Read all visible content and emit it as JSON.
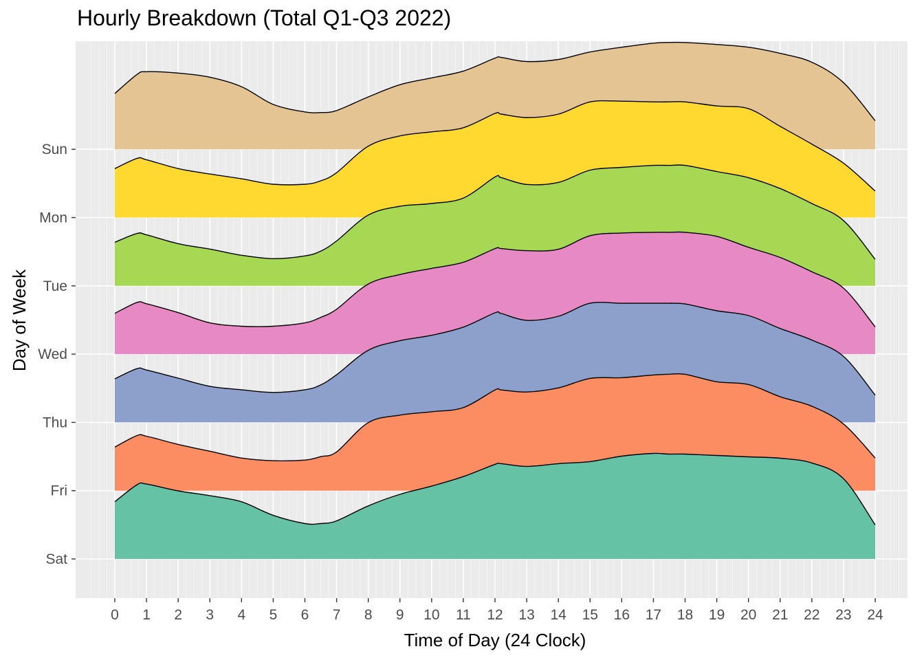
{
  "chart_data": {
    "type": "area",
    "title": "Hourly Breakdown (Total Q1-Q3 2022)",
    "xlabel": "Time of Day (24 Clock)",
    "ylabel": "Day of Week",
    "xlim": [
      0,
      24
    ],
    "x_ticks": [
      "0",
      "1",
      "2",
      "3",
      "4",
      "5",
      "6",
      "7",
      "8",
      "9",
      "10",
      "11",
      "12",
      "13",
      "14",
      "15",
      "16",
      "17",
      "18",
      "19",
      "20",
      "21",
      "22",
      "23",
      "24"
    ],
    "categories": [
      "Sat",
      "Fri",
      "Thu",
      "Wed",
      "Tue",
      "Mon",
      "Sun"
    ],
    "grid": true,
    "background": "#ebebeb",
    "x": [
      0,
      0.7,
      1,
      2,
      3,
      4,
      5,
      6,
      6.5,
      7,
      8,
      9,
      10,
      11,
      12,
      12.2,
      13,
      14,
      15,
      16,
      17,
      17.5,
      18,
      19,
      20,
      21,
      22,
      23,
      24
    ],
    "series": [
      {
        "name": "Sun",
        "color": "#e5c494",
        "values": [
          0.82,
          1.1,
          1.14,
          1.12,
          1.06,
          0.92,
          0.66,
          0.55,
          0.54,
          0.57,
          0.77,
          0.95,
          1.05,
          1.15,
          1.34,
          1.35,
          1.29,
          1.32,
          1.43,
          1.5,
          1.56,
          1.57,
          1.57,
          1.54,
          1.5,
          1.41,
          1.28,
          0.98,
          0.42
        ]
      },
      {
        "name": "Mon",
        "color": "#ffd92f",
        "values": [
          0.72,
          0.87,
          0.85,
          0.72,
          0.64,
          0.57,
          0.49,
          0.49,
          0.54,
          0.66,
          1.05,
          1.2,
          1.26,
          1.32,
          1.53,
          1.52,
          1.47,
          1.52,
          1.7,
          1.71,
          1.7,
          1.7,
          1.7,
          1.64,
          1.6,
          1.34,
          1.08,
          0.8,
          0.39
        ]
      },
      {
        "name": "Tue",
        "color": "#a6d854",
        "values": [
          0.64,
          0.77,
          0.75,
          0.62,
          0.54,
          0.45,
          0.4,
          0.44,
          0.51,
          0.66,
          1.04,
          1.17,
          1.21,
          1.29,
          1.6,
          1.59,
          1.49,
          1.52,
          1.7,
          1.74,
          1.77,
          1.77,
          1.77,
          1.68,
          1.59,
          1.43,
          1.21,
          0.96,
          0.39
        ]
      },
      {
        "name": "Wed",
        "color": "#e78ac3",
        "values": [
          0.6,
          0.76,
          0.74,
          0.61,
          0.46,
          0.41,
          0.41,
          0.46,
          0.54,
          0.66,
          1.03,
          1.17,
          1.26,
          1.35,
          1.55,
          1.55,
          1.52,
          1.54,
          1.74,
          1.78,
          1.79,
          1.79,
          1.79,
          1.73,
          1.57,
          1.42,
          1.21,
          0.97,
          0.4
        ]
      },
      {
        "name": "Thu",
        "color": "#8da0cb",
        "values": [
          0.64,
          0.79,
          0.77,
          0.65,
          0.53,
          0.48,
          0.44,
          0.48,
          0.55,
          0.7,
          1.06,
          1.2,
          1.28,
          1.4,
          1.61,
          1.6,
          1.5,
          1.56,
          1.75,
          1.75,
          1.75,
          1.75,
          1.74,
          1.64,
          1.57,
          1.38,
          1.21,
          0.97,
          0.4
        ]
      },
      {
        "name": "Fri",
        "color": "#fc8d62",
        "values": [
          0.64,
          0.81,
          0.8,
          0.68,
          0.58,
          0.48,
          0.44,
          0.45,
          0.5,
          0.57,
          1.0,
          1.11,
          1.16,
          1.22,
          1.48,
          1.48,
          1.45,
          1.51,
          1.65,
          1.66,
          1.7,
          1.71,
          1.71,
          1.6,
          1.56,
          1.38,
          1.24,
          0.98,
          0.48
        ]
      },
      {
        "name": "Sat",
        "color": "#66c2a5",
        "values": [
          0.84,
          1.09,
          1.1,
          1.0,
          0.93,
          0.84,
          0.64,
          0.52,
          0.52,
          0.56,
          0.78,
          0.95,
          1.07,
          1.21,
          1.39,
          1.4,
          1.36,
          1.4,
          1.43,
          1.51,
          1.55,
          1.54,
          1.54,
          1.52,
          1.5,
          1.48,
          1.41,
          1.18,
          0.5
        ]
      }
    ]
  }
}
